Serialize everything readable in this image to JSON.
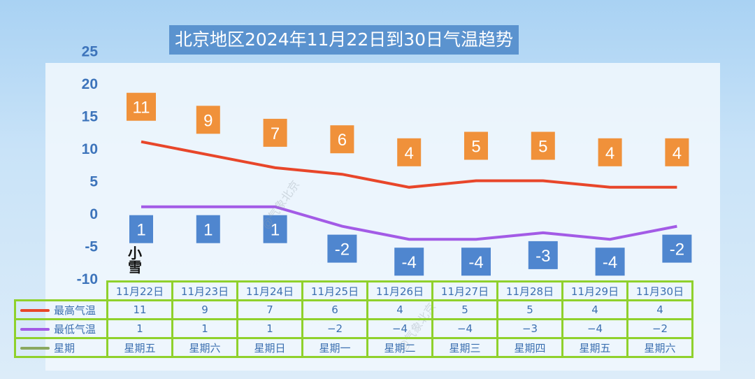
{
  "chart_data": {
    "type": "line",
    "title": "北京地区2024年11月22日到30日气温趋势",
    "categories": [
      "11月22日",
      "11月23日",
      "11月24日",
      "11月25日",
      "11月26日",
      "11月27日",
      "11月28日",
      "11月29日",
      "11月30日"
    ],
    "series": [
      {
        "name": "最高气温",
        "color": "#e8462a",
        "label_color": "#f0913a",
        "values": [
          11,
          9,
          7,
          6,
          4,
          5,
          5,
          4,
          4
        ]
      },
      {
        "name": "最低气温",
        "color": "#a35be6",
        "label_color": "#4f86cf",
        "values": [
          1,
          1,
          1,
          -2,
          -4,
          -4,
          -3,
          -4,
          -2
        ]
      }
    ],
    "weekday_label": "星期",
    "weekday_color": "#8aa860",
    "weekdays": [
      "星期五",
      "星期六",
      "星期日",
      "星期一",
      "星期二",
      "星期三",
      "星期四",
      "星期五",
      "星期六"
    ],
    "yticks": [
      25,
      20,
      15,
      10,
      5,
      0,
      -5,
      -10
    ],
    "ylim": [
      -10,
      25
    ],
    "grid": false,
    "annotation": "小雪",
    "watermark": "@气象北京"
  }
}
